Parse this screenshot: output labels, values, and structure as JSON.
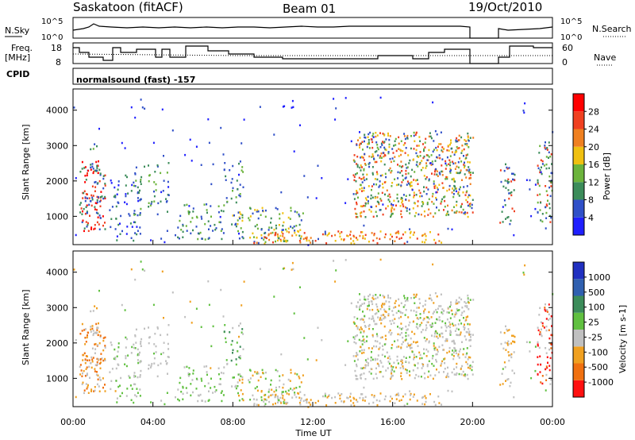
{
  "header": {
    "station": "Saskatoon (fitACF)",
    "beam": "Beam 01",
    "date": "19/Oct/2010"
  },
  "top_panels": {
    "nsky_label": "N.Sky",
    "nsky_ticks": [
      "10^5",
      "10^0"
    ],
    "nsearch_label": "N.Search",
    "nsearch_ticks": [
      "10^5",
      "10^0"
    ],
    "freq_label_1": "Freq.",
    "freq_label_2": "[MHz]",
    "freq_ticks": [
      "18",
      "8"
    ],
    "nave_label": "Nave",
    "nave_ticks": [
      "60",
      "0"
    ],
    "cpid_label": "CPID",
    "cpid_text": "normalsound (fast) -157"
  },
  "chart_data": [
    {
      "type": "heatmap",
      "name": "power",
      "ylabel": "Slant Range [km]",
      "ylim": [
        200,
        4600
      ],
      "yticks": [
        "1000",
        "2000",
        "3000",
        "4000"
      ],
      "colorbar_label": "Power [dB]",
      "colorbar_ticks": [
        "4",
        "8",
        "12",
        "16",
        "20",
        "24",
        "28"
      ],
      "colors": [
        "#1f1fff",
        "#3050c8",
        "#3c8c5a",
        "#6cb43c",
        "#f0c010",
        "#f08020",
        "#f04020",
        "#ff0000"
      ]
    },
    {
      "type": "heatmap",
      "name": "velocity",
      "ylabel": "Slant Range [km]",
      "ylim": [
        200,
        4600
      ],
      "yticks": [
        "1000",
        "2000",
        "3000",
        "4000"
      ],
      "colorbar_label": "Velocity [m s-1]",
      "colorbar_ticks": [
        "1000",
        "500",
        "100",
        "25",
        "-25",
        "-100",
        "-500",
        "-1000"
      ],
      "colors": [
        "#2030c0",
        "#3060b0",
        "#3c8c5a",
        "#60c040",
        "#c0c0c0",
        "#f0a020",
        "#f07010",
        "#ff1010"
      ],
      "xlabel": "Time UT",
      "xticks": [
        "00:00",
        "04:00",
        "08:00",
        "12:00",
        "16:00",
        "20:00",
        "00:00"
      ]
    }
  ]
}
